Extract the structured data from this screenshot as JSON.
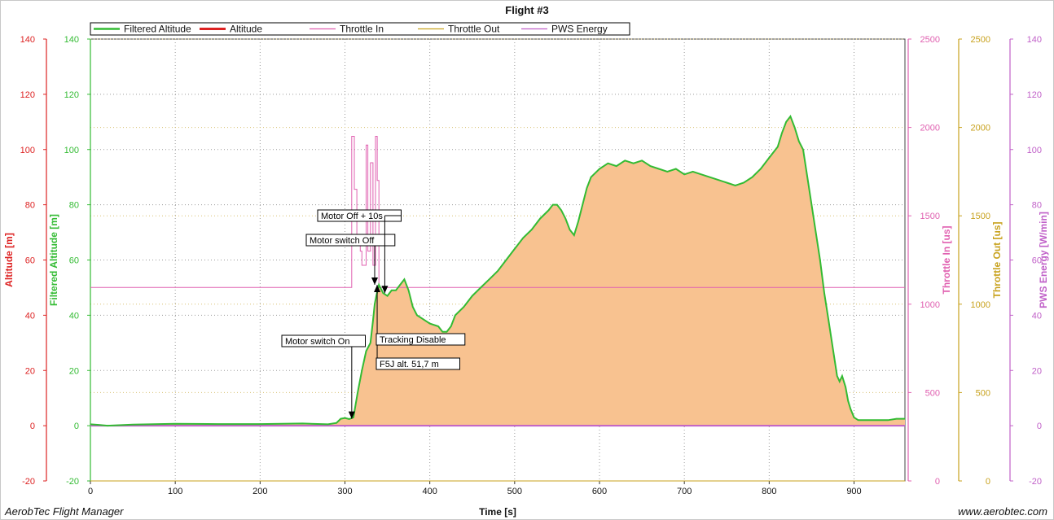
{
  "app": {
    "brand_left": "AerobTec Flight Manager",
    "brand_right": "www.aerobtec.com"
  },
  "colors": {
    "filtered_altitude": "#33bb33",
    "altitude": "#dd2222",
    "altitude_fill": "#f8c290",
    "throttle_in": "#e060b0",
    "throttle_out": "#c8a21e",
    "pws_energy": "#c060c8",
    "grid": "#9a9a9a"
  },
  "chart_data": {
    "type": "line",
    "title": "Flight #3",
    "xlabel": "Time [s]",
    "xlim": [
      0,
      960
    ],
    "x_ticks": [
      0,
      100,
      200,
      300,
      400,
      500,
      600,
      700,
      800,
      900
    ],
    "legend": {
      "placement": "top",
      "entries": [
        "Filtered Altitude",
        "Altitude",
        "Throttle In",
        "Throttle Out",
        "PWS Energy"
      ]
    },
    "axes": [
      {
        "id": "altitude",
        "label": "Altitude [m]",
        "range": [
          -20,
          140
        ],
        "ticks": [
          -20,
          0,
          20,
          40,
          60,
          80,
          100,
          120,
          140
        ],
        "side": "left",
        "color": "#dd2222"
      },
      {
        "id": "filtered_altitude",
        "label": "Filtered Altitude [m]",
        "range": [
          -20,
          140
        ],
        "ticks": [
          -20,
          0,
          20,
          40,
          60,
          80,
          100,
          120,
          140
        ],
        "side": "left",
        "color": "#33bb33"
      },
      {
        "id": "throttle_in",
        "label": "Throttle In [us]",
        "range": [
          0,
          2500
        ],
        "ticks": [
          0,
          500,
          1000,
          1500,
          2000,
          2500
        ],
        "side": "right",
        "color": "#e060b0"
      },
      {
        "id": "throttle_out",
        "label": "Throttle Out [us]",
        "range": [
          0,
          2500
        ],
        "ticks": [
          0,
          500,
          1000,
          1500,
          2000,
          2500
        ],
        "side": "right",
        "color": "#c8a21e"
      },
      {
        "id": "pws_energy",
        "label": "PWS Energy [W/min]",
        "range": [
          -20,
          140
        ],
        "ticks": [
          -20,
          0,
          20,
          40,
          60,
          80,
          100,
          120,
          140
        ],
        "side": "right",
        "color": "#c060c8"
      }
    ],
    "series": [
      {
        "name": "Filtered Altitude",
        "axis": "filtered_altitude",
        "x": [
          0,
          10,
          20,
          50,
          100,
          150,
          200,
          250,
          280,
          290,
          295,
          300,
          305,
          310,
          315,
          320,
          325,
          330,
          333,
          335,
          337,
          340,
          345,
          350,
          355,
          360,
          365,
          370,
          375,
          380,
          385,
          390,
          400,
          410,
          415,
          420,
          425,
          430,
          440,
          450,
          460,
          470,
          480,
          490,
          500,
          510,
          520,
          530,
          540,
          545,
          550,
          555,
          560,
          565,
          570,
          575,
          580,
          585,
          590,
          600,
          610,
          620,
          630,
          640,
          650,
          655,
          660,
          670,
          680,
          690,
          700,
          710,
          720,
          730,
          740,
          750,
          760,
          770,
          780,
          790,
          800,
          810,
          815,
          820,
          825,
          830,
          835,
          840,
          845,
          850,
          855,
          860,
          865,
          870,
          875,
          880,
          883,
          886,
          890,
          893,
          896,
          900,
          905,
          910,
          920,
          930,
          940,
          950,
          960
        ],
        "y": [
          0.5,
          0.3,
          0.0,
          0.4,
          0.7,
          0.6,
          0.6,
          0.8,
          0.5,
          1.0,
          2.5,
          2.8,
          2.4,
          3.0,
          12,
          20,
          27,
          30,
          38,
          44,
          47,
          51,
          48,
          47,
          49,
          49,
          51,
          53,
          49,
          43,
          40,
          39,
          37,
          36,
          34,
          34,
          36,
          40,
          43,
          47,
          50,
          53,
          56,
          60,
          64,
          68,
          71,
          75,
          78,
          80,
          80,
          78,
          75,
          71,
          69,
          74,
          80,
          86,
          90,
          93,
          95,
          94,
          96,
          95,
          96,
          95,
          94,
          93,
          92,
          93,
          91,
          92,
          91,
          90,
          89,
          88,
          87,
          88,
          90,
          93,
          97,
          101,
          106,
          110,
          112,
          108,
          103,
          100,
          90,
          80,
          70,
          60,
          48,
          38,
          28,
          18,
          16,
          18,
          14,
          9,
          6,
          3,
          2,
          2,
          2,
          2,
          2,
          2.5,
          2.5
        ]
      },
      {
        "name": "Altitude",
        "axis": "altitude",
        "note_style": "filled area under Filtered Altitude curve",
        "x": [],
        "y": []
      },
      {
        "name": "Throttle In",
        "axis": "throttle_in",
        "x": [
          0,
          308,
          308,
          311,
          311,
          314,
          314,
          318,
          318,
          320,
          320,
          325,
          325,
          327,
          327,
          330,
          330,
          333,
          333,
          336,
          336,
          338,
          338,
          340,
          340,
          960
        ],
        "y": [
          1095,
          1095,
          1950,
          1950,
          1650,
          1650,
          1350,
          1350,
          1300,
          1300,
          1220,
          1220,
          1900,
          1900,
          1300,
          1300,
          1800,
          1800,
          1220,
          1220,
          1950,
          1950,
          1700,
          1700,
          1095,
          1095
        ]
      },
      {
        "name": "Throttle Out",
        "axis": "throttle_out",
        "x": [
          0,
          960
        ],
        "y": [
          0,
          0
        ]
      },
      {
        "name": "PWS Energy",
        "axis": "pws_energy",
        "x": [
          0,
          960
        ],
        "y": [
          0,
          0
        ]
      }
    ],
    "annotations": [
      {
        "label": "Motor switch On",
        "x": 308,
        "value": 2.5
      },
      {
        "label": "Motor switch Off",
        "x": 336,
        "value": 51
      },
      {
        "label": "Motor Off + 10s",
        "x": 346,
        "value": 48
      },
      {
        "label": "Tracking Disable",
        "x": 337,
        "value": 51
      },
      {
        "label": "F5J alt. 51,7 m",
        "x": 337,
        "value": 51.7
      }
    ]
  }
}
